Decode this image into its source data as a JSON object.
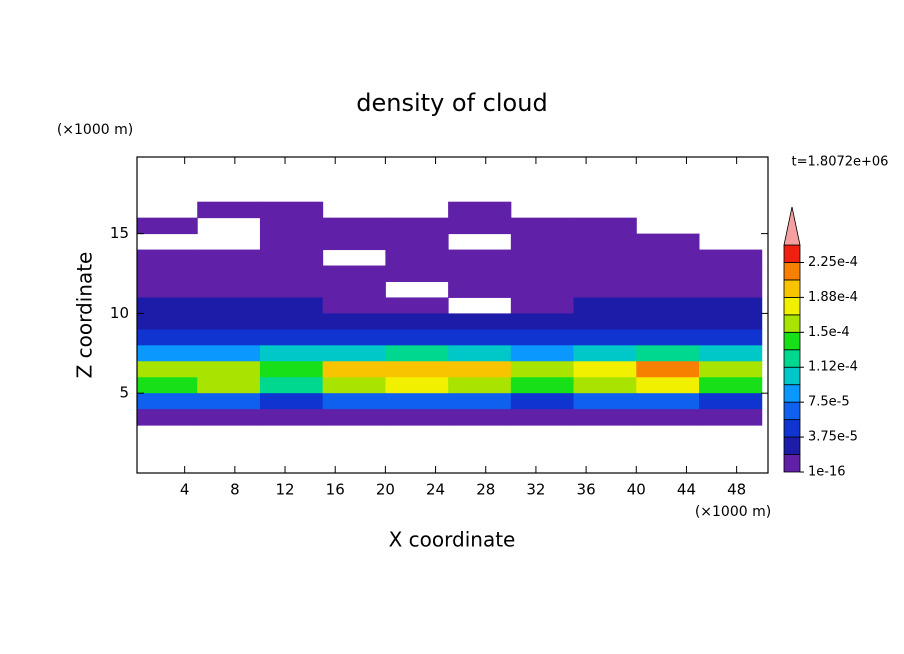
{
  "chart_data": {
    "type": "contour",
    "title": "density of cloud",
    "xlabel": "X coordinate",
    "ylabel": "Z coordinate",
    "xunit": "(×1000 m)",
    "yunit": "(×1000 m)",
    "annotation": "t=1.8072e+06",
    "xlim": [
      0.2,
      50.5
    ],
    "ylim": [
      0,
      19.8
    ],
    "xticks": [
      4,
      8,
      12,
      16,
      20,
      24,
      28,
      32,
      36,
      40,
      44,
      48
    ],
    "yticks": [
      5,
      10,
      15
    ],
    "grid": false,
    "x": [
      2.5,
      7.5,
      12.5,
      17.5,
      22.5,
      27.5,
      32.5,
      37.5,
      42.5,
      47.5
    ],
    "y": [
      16.5,
      15.5,
      14.5,
      13.5,
      12.5,
      11.5,
      10.5,
      9.5,
      8.5,
      7.5,
      6.5,
      5.5,
      4.5,
      3.5
    ],
    "z": [
      [
        null,
        1e-06,
        1e-06,
        null,
        null,
        1e-06,
        null,
        null,
        null,
        null
      ],
      [
        1e-06,
        null,
        1e-06,
        1e-06,
        1e-06,
        1e-06,
        1e-06,
        1e-06,
        null,
        null
      ],
      [
        null,
        null,
        1e-06,
        1e-06,
        1e-06,
        null,
        1e-06,
        1e-06,
        1e-06,
        null
      ],
      [
        2e-06,
        2e-06,
        2e-06,
        null,
        2e-06,
        2e-06,
        2e-06,
        2e-06,
        2e-06,
        2e-06
      ],
      [
        4e-06,
        4e-06,
        4e-06,
        3e-06,
        3e-06,
        3e-06,
        3e-06,
        3e-06,
        3e-06,
        3e-06
      ],
      [
        1e-05,
        1e-05,
        8e-06,
        5e-06,
        null,
        5e-06,
        5e-06,
        5e-06,
        5e-06,
        8e-06
      ],
      [
        2e-05,
        2e-05,
        2e-05,
        1.5e-05,
        1.5e-05,
        null,
        1.5e-05,
        2e-05,
        2e-05,
        2e-05
      ],
      [
        3e-05,
        3e-05,
        3e-05,
        2.5e-05,
        2.5e-05,
        2.5e-05,
        2.5e-05,
        3e-05,
        3e-05,
        3e-05
      ],
      [
        4e-05,
        4e-05,
        4.5e-05,
        4e-05,
        4e-05,
        4e-05,
        4e-05,
        4e-05,
        4.5e-05,
        4e-05
      ],
      [
        8e-05,
        9e-05,
        0.0001,
        0.00011,
        0.00012,
        0.00011,
        9e-05,
        0.00011,
        0.00012,
        0.0001
      ],
      [
        0.00015,
        0.00016,
        0.00014,
        0.00019,
        0.0002,
        0.00019,
        0.00016,
        0.00018,
        0.00021,
        0.00016
      ],
      [
        0.00014,
        0.00015,
        0.00013,
        0.00016,
        0.00017,
        0.00016,
        0.00014,
        0.00016,
        0.00017,
        0.00014
      ],
      [
        6e-05,
        6e-05,
        5e-05,
        6e-05,
        6e-05,
        6e-05,
        5e-05,
        6e-05,
        6e-05,
        5e-05
      ],
      [
        1e-05,
        1e-05,
        1e-05,
        1e-05,
        1e-05,
        1e-05,
        1e-05,
        1e-05,
        1e-05,
        1e-05
      ]
    ],
    "colorbar": {
      "ticks": [
        1e-16,
        {
          "value": 3.75e-05,
          "label": "3.75e-5"
        },
        {
          "value": 7.5e-05,
          "label": "7.5e-5"
        },
        {
          "value": 0.000112,
          "label": "1.12e-4"
        },
        {
          "value": 0.00015,
          "label": "1.5e-4"
        },
        {
          "value": 0.000188,
          "label": "1.88e-4"
        },
        {
          "value": 0.000225,
          "label": "2.25e-4"
        }
      ],
      "colors": [
        "#6020a8",
        "#1c1ca8",
        "#1034d0",
        "#1060f0",
        "#0a98ff",
        "#00c8c8",
        "#00d890",
        "#18e018",
        "#a8e400",
        "#f0f000",
        "#f8c400",
        "#f88000",
        "#f02010"
      ],
      "over_color": "#f4a0a0"
    }
  }
}
